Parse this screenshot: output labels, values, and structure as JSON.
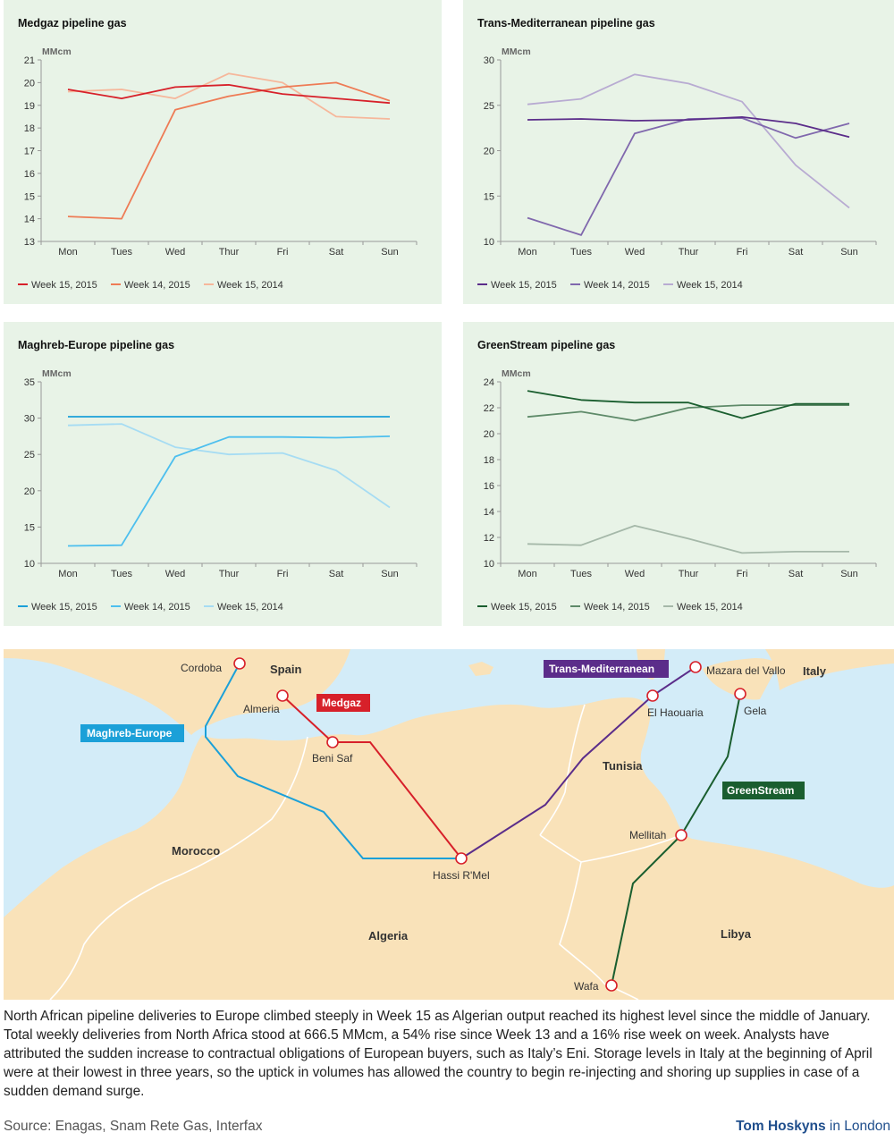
{
  "chart_data": [
    {
      "type": "line",
      "title": "Medgaz pipeline gas",
      "ylabel": "MMcm",
      "categories": [
        "Mon",
        "Tues",
        "Wed",
        "Thur",
        "Fri",
        "Sat",
        "Sun"
      ],
      "ylim": [
        13,
        21
      ],
      "yticks": [
        13,
        14,
        15,
        16,
        17,
        18,
        19,
        20,
        21
      ],
      "grid": false,
      "legend": "bottom",
      "series": [
        {
          "name": "Week 15, 2015",
          "color": "#d7202a",
          "values": [
            19.7,
            19.3,
            19.8,
            19.9,
            19.5,
            19.3,
            19.1
          ]
        },
        {
          "name": "Week 14, 2015",
          "color": "#ee7b55",
          "values": [
            14.1,
            14.0,
            18.8,
            19.4,
            19.8,
            20.0,
            19.2
          ]
        },
        {
          "name": "Week 15, 2014",
          "color": "#f6b79b",
          "values": [
            19.6,
            19.7,
            19.3,
            20.4,
            20.0,
            18.5,
            18.4
          ]
        }
      ]
    },
    {
      "type": "line",
      "title": "Trans-Mediterranean pipeline gas",
      "ylabel": "MMcm",
      "categories": [
        "Mon",
        "Tues",
        "Wed",
        "Thur",
        "Fri",
        "Sat",
        "Sun"
      ],
      "ylim": [
        10,
        30
      ],
      "yticks": [
        10,
        15,
        20,
        25,
        30
      ],
      "grid": false,
      "legend": "bottom",
      "series": [
        {
          "name": "Week 15, 2015",
          "color": "#5b2d8a",
          "values": [
            23.4,
            23.5,
            23.3,
            23.4,
            23.7,
            23.0,
            21.5
          ]
        },
        {
          "name": "Week 14, 2015",
          "color": "#8068ad",
          "values": [
            12.6,
            10.7,
            21.9,
            23.5,
            23.6,
            21.4,
            23.0
          ]
        },
        {
          "name": "Week 15, 2014",
          "color": "#b8abd2",
          "values": [
            25.1,
            25.7,
            28.4,
            27.4,
            25.4,
            18.4,
            13.7
          ]
        }
      ]
    },
    {
      "type": "line",
      "title": "Maghreb-Europe pipeline gas",
      "ylabel": "MMcm",
      "categories": [
        "Mon",
        "Tues",
        "Wed",
        "Thur",
        "Fri",
        "Sat",
        "Sun"
      ],
      "ylim": [
        10,
        35
      ],
      "yticks": [
        10,
        15,
        20,
        25,
        30,
        35
      ],
      "grid": false,
      "legend": "bottom",
      "series": [
        {
          "name": "Week 15, 2015",
          "color": "#1ba0d8",
          "values": [
            30.2,
            30.2,
            30.2,
            30.2,
            30.2,
            30.2,
            30.2
          ]
        },
        {
          "name": "Week 14, 2015",
          "color": "#4dbfee",
          "values": [
            12.4,
            12.5,
            24.7,
            27.4,
            27.4,
            27.3,
            27.5
          ]
        },
        {
          "name": "Week 15, 2014",
          "color": "#a6dcf3",
          "values": [
            29.0,
            29.2,
            26.0,
            25.0,
            25.2,
            22.8,
            17.7
          ]
        }
      ]
    },
    {
      "type": "line",
      "title": "GreenStream pipeline gas",
      "ylabel": "MMcm",
      "categories": [
        "Mon",
        "Tues",
        "Wed",
        "Thur",
        "Fri",
        "Sat",
        "Sun"
      ],
      "ylim": [
        10,
        24
      ],
      "yticks": [
        10,
        12,
        14,
        16,
        18,
        20,
        22,
        24
      ],
      "grid": false,
      "legend": "bottom",
      "series": [
        {
          "name": "Week 15, 2015",
          "color": "#1a5e2f",
          "values": [
            23.3,
            22.6,
            22.4,
            22.4,
            21.2,
            22.3,
            22.3
          ]
        },
        {
          "name": "Week 14, 2015",
          "color": "#5e8a69",
          "values": [
            21.3,
            21.7,
            21.0,
            22.0,
            22.2,
            22.2,
            22.2
          ]
        },
        {
          "name": "Week 15, 2014",
          "color": "#a5b8a9",
          "values": [
            11.5,
            11.4,
            12.9,
            11.9,
            10.8,
            10.9,
            10.9
          ]
        }
      ]
    }
  ],
  "map": {
    "countries": [
      "Spain",
      "Italy",
      "Tunisia",
      "Morocco",
      "Algeria",
      "Libya"
    ],
    "places": [
      "Cordoba",
      "Almeria",
      "Beni Saf",
      "Hassi R'Mel",
      "Mazara del Vallo",
      "El Haouaria",
      "Gela",
      "Mellitah",
      "Wafa"
    ],
    "pipelines": [
      {
        "name": "Maghreb-Europe",
        "color": "#1ba0d8"
      },
      {
        "name": "Medgaz",
        "color": "#d7202a"
      },
      {
        "name": "Trans-Mediterranean",
        "color": "#5b2d8a"
      },
      {
        "name": "GreenStream",
        "color": "#1a5e2f"
      }
    ],
    "sea_color": "#d3ecf8",
    "land_color": "#f9e2b9"
  },
  "description": "North African pipeline deliveries to Europe climbed steeply in Week 15 as Algerian output reached its highest level since the middle of January. Total weekly deliveries from North Africa stood at 666.5 MMcm, a 54% rise since Week 13 and a 16% rise week on week. Analysts have attributed the sudden increase to contractual obligations of European buyers, such as Italy’s Eni. Storage levels in Italy at the beginning of April were at their lowest in three years, so the uptick in volumes has allowed the country to begin re-injecting and shoring up supplies in case of a sudden demand surge.",
  "footer": {
    "source": "Source: Enagas, Snam Rete Gas, Interfax",
    "author": "Tom Hoskyns",
    "location": "in London"
  }
}
